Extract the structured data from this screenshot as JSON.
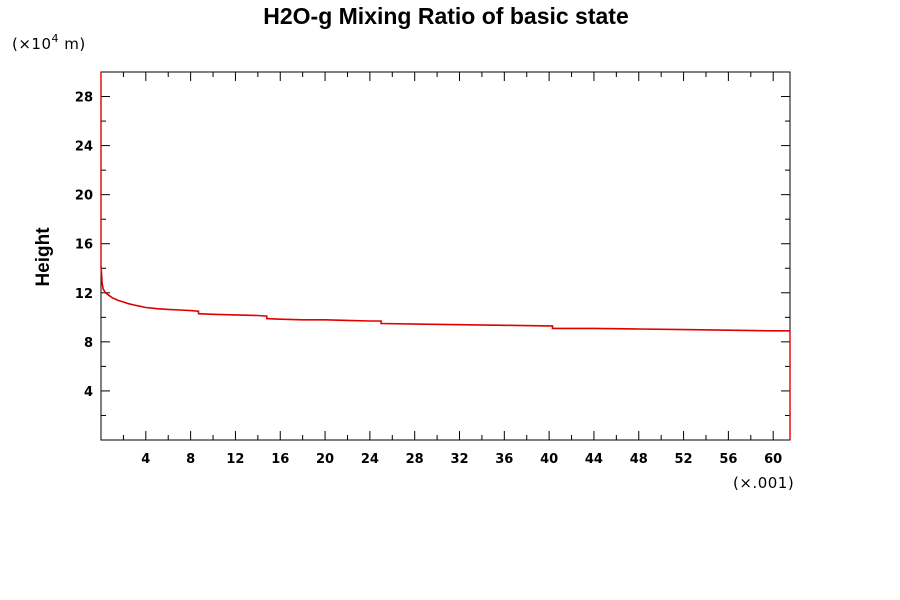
{
  "chart_data": {
    "type": "line",
    "title": "H2O-g Mixing Ratio of basic state",
    "ylabel": "Height",
    "xlabel": "",
    "y_unit": "(×10⁴ m)",
    "y_unit_parts": {
      "open": "(×10",
      "exp": "4",
      "close": " m)"
    },
    "x_unit": "(×.001)",
    "xlim": [
      0,
      61.5
    ],
    "ylim": [
      0,
      30
    ],
    "x_ticks_major": [
      4,
      8,
      12,
      16,
      20,
      24,
      28,
      32,
      36,
      40,
      44,
      48,
      52,
      56,
      60
    ],
    "y_ticks_major": [
      4,
      8,
      12,
      16,
      20,
      24,
      28
    ],
    "series": [
      {
        "color": "#e00000",
        "x": [
          0.0,
          0.05,
          0.1,
          0.2,
          0.4,
          0.7,
          1.0,
          1.5,
          2.0,
          2.5,
          3.0,
          3.5,
          4.0,
          4.5,
          5.0,
          6.0,
          7.0,
          8.0,
          8.7,
          8.7,
          10.0,
          12.0,
          14.0,
          14.8,
          14.8,
          16.0,
          18.0,
          20.0,
          22.0,
          24.0,
          25.0,
          25.0,
          28.0,
          32.0,
          36.0,
          40.0,
          40.3,
          40.3,
          44.0,
          48.0,
          52.0,
          56.0,
          60.0,
          61.5
        ],
        "y": [
          14.2,
          13.5,
          12.8,
          12.3,
          12.0,
          11.8,
          11.6,
          11.4,
          11.25,
          11.1,
          11.0,
          10.9,
          10.8,
          10.75,
          10.7,
          10.65,
          10.6,
          10.55,
          10.5,
          10.3,
          10.25,
          10.2,
          10.15,
          10.1,
          9.9,
          9.85,
          9.8,
          9.8,
          9.75,
          9.7,
          9.7,
          9.5,
          9.45,
          9.4,
          9.35,
          9.3,
          9.3,
          9.1,
          9.1,
          9.05,
          9.0,
          8.95,
          8.9,
          8.9
        ]
      }
    ],
    "grid": false,
    "legend": "none"
  }
}
